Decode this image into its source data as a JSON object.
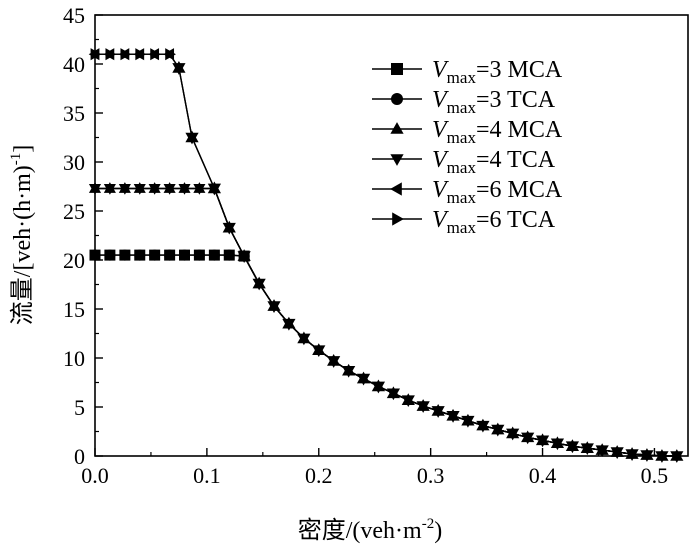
{
  "chart_data": {
    "type": "line",
    "title": "",
    "xlabel": {
      "main": "密度/(veh·m",
      "sup": "-2",
      "tail": ")"
    },
    "ylabel": {
      "main": "流量/[veh·(h·m)",
      "sup": "-1",
      "tail": "]"
    },
    "xlim": [
      0.0,
      0.53
    ],
    "ylim": [
      0,
      45
    ],
    "x_ticks": [
      0.0,
      0.1,
      0.2,
      0.3,
      0.4,
      0.5
    ],
    "x_tick_labels": [
      "0.0",
      "0.1",
      "0.2",
      "0.3",
      "0.4",
      "0.5"
    ],
    "y_ticks": [
      0,
      5,
      10,
      15,
      20,
      25,
      30,
      35,
      40,
      45
    ],
    "y_tick_labels": [
      "0",
      "5",
      "10",
      "15",
      "20",
      "25",
      "30",
      "35",
      "40",
      "45"
    ],
    "grid": false,
    "legend_position": "top-right",
    "series": [
      {
        "name": "Vmax=3 MCA",
        "v": "V",
        "sub": "max",
        "rest": "=3 MCA",
        "marker": "square",
        "x": [
          0.0,
          0.0133,
          0.0267,
          0.04,
          0.0533,
          0.0667,
          0.08,
          0.0933,
          0.1067,
          0.12,
          0.1333
        ],
        "y": [
          20.5,
          20.5,
          20.5,
          20.5,
          20.5,
          20.5,
          20.5,
          20.5,
          20.5,
          20.5,
          20.4
        ]
      },
      {
        "name": "Vmax=3 TCA",
        "v": "V",
        "sub": "max",
        "rest": "=3 TCA",
        "marker": "circle",
        "x": [
          0.0,
          0.0133,
          0.0267,
          0.04,
          0.0533,
          0.0667,
          0.08,
          0.0933,
          0.1067,
          0.12,
          0.1333
        ],
        "y": [
          20.5,
          20.5,
          20.5,
          20.5,
          20.5,
          20.5,
          20.5,
          20.5,
          20.5,
          20.5,
          20.4
        ]
      },
      {
        "name": "Vmax=4 MCA",
        "v": "V",
        "sub": "max",
        "rest": "=4 MCA",
        "marker": "triangle-up",
        "x": [
          0.0,
          0.0133,
          0.0267,
          0.04,
          0.0533,
          0.0667,
          0.08,
          0.0933,
          0.1067
        ],
        "y": [
          27.3,
          27.3,
          27.3,
          27.3,
          27.3,
          27.3,
          27.3,
          27.3,
          27.3
        ]
      },
      {
        "name": "Vmax=4 TCA",
        "v": "V",
        "sub": "max",
        "rest": "=4 TCA",
        "marker": "triangle-down",
        "x": [
          0.0,
          0.0133,
          0.0267,
          0.04,
          0.0533,
          0.0667,
          0.08,
          0.0933,
          0.1067
        ],
        "y": [
          27.3,
          27.3,
          27.3,
          27.3,
          27.3,
          27.3,
          27.3,
          27.3,
          27.3
        ]
      },
      {
        "name": "Vmax=6 MCA",
        "v": "V",
        "sub": "max",
        "rest": "=6 MCA",
        "marker": "triangle-left",
        "x": [
          0.0,
          0.0133,
          0.0267,
          0.04,
          0.0533,
          0.0667
        ],
        "y": [
          41.0,
          41.0,
          41.0,
          41.0,
          41.0,
          41.0
        ]
      },
      {
        "name": "Vmax=6 TCA",
        "v": "V",
        "sub": "max",
        "rest": "=6 TCA",
        "marker": "triangle-right",
        "x": [
          0.0,
          0.0133,
          0.0267,
          0.04,
          0.0533,
          0.0667
        ],
        "y": [
          41.0,
          41.0,
          41.0,
          41.0,
          41.0,
          41.0
        ]
      }
    ],
    "shared_decline": {
      "note": "all series follow the same congested branch",
      "x": [
        0.075,
        0.0867,
        0.1067,
        0.12,
        0.1333,
        0.1467,
        0.16,
        0.1733,
        0.1867,
        0.2,
        0.2133,
        0.2267,
        0.24,
        0.2533,
        0.2667,
        0.28,
        0.2933,
        0.3067,
        0.32,
        0.3333,
        0.3467,
        0.36,
        0.3733,
        0.3867,
        0.4,
        0.4133,
        0.4267,
        0.44,
        0.4533,
        0.4667,
        0.48,
        0.4933,
        0.5067,
        0.52
      ],
      "y": [
        39.6,
        32.5,
        27.3,
        23.3,
        20.4,
        17.6,
        15.3,
        13.5,
        12.0,
        10.8,
        9.7,
        8.7,
        7.9,
        7.1,
        6.4,
        5.7,
        5.1,
        4.6,
        4.1,
        3.6,
        3.1,
        2.7,
        2.3,
        1.9,
        1.6,
        1.3,
        1.0,
        0.8,
        0.6,
        0.4,
        0.2,
        0.1,
        0.0,
        0.0
      ]
    }
  }
}
